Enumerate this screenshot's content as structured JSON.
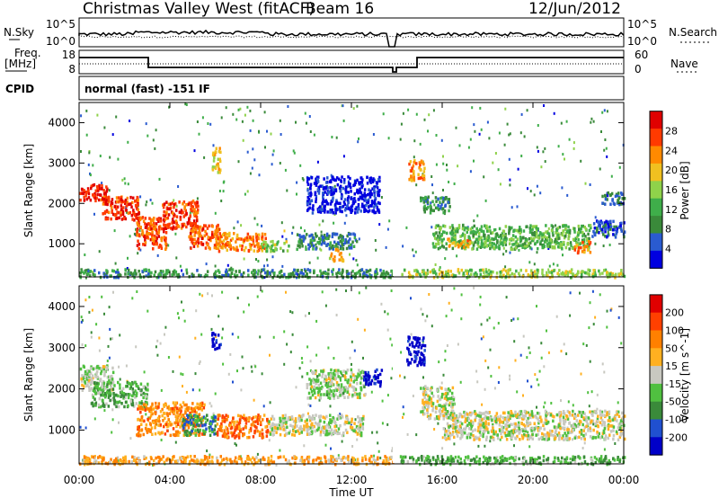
{
  "header": {
    "station": "Christmas Valley West (fitACF)",
    "beam": "Beam 16",
    "date": "12/Jun/2012"
  },
  "noise_panel": {
    "left_label": "N.Sky",
    "left_ticks": [
      "10^5",
      "10^0"
    ],
    "right_label": "N.Search",
    "right_ticks": [
      "10^5",
      "10^0"
    ]
  },
  "freq_panel": {
    "left_label_line1": "Freq.",
    "left_label_line2": "[MHz]",
    "left_ticks": [
      "18",
      "8"
    ],
    "right_label": "Nave",
    "right_ticks": [
      "60",
      "0"
    ]
  },
  "cpid_panel": {
    "label": "CPID",
    "text": "normal (fast) -151 IF"
  },
  "chart_data": [
    {
      "type": "heatmap",
      "title": "",
      "quantity": "Power",
      "ylabel": "Slant Range [km]",
      "colorbar_label": "Power [dB]",
      "colorbar_ticks": [
        "28",
        "24",
        "20",
        "16",
        "12",
        "8",
        "4"
      ],
      "yticks": [
        "4000",
        "3000",
        "2000",
        "1000"
      ],
      "ylim": [
        180,
        4500
      ],
      "xlim_hours": [
        0,
        24
      ],
      "colors": [
        "#0000e0",
        "#2a5bd0",
        "#3a8a3a",
        "#3fae4a",
        "#8fd24a",
        "#f0c020",
        "#ff8a00",
        "#ff3a00",
        "#e00000"
      ],
      "bands": [
        {
          "t0": 0.0,
          "t1": 1.2,
          "r0": 2100,
          "r1": 2500,
          "level": 0.9
        },
        {
          "t0": 1.0,
          "t1": 2.6,
          "r0": 1600,
          "r1": 2200,
          "level": 0.85
        },
        {
          "t0": 2.5,
          "t1": 3.8,
          "r0": 900,
          "r1": 1700,
          "level": 0.8
        },
        {
          "t0": 3.6,
          "t1": 5.2,
          "r0": 1400,
          "r1": 2100,
          "level": 0.85
        },
        {
          "t0": 4.8,
          "t1": 6.2,
          "r0": 900,
          "r1": 1500,
          "level": 0.8
        },
        {
          "t0": 6.0,
          "t1": 8.2,
          "r0": 850,
          "r1": 1300,
          "level": 0.75
        },
        {
          "t0": 5.8,
          "t1": 6.2,
          "r0": 2800,
          "r1": 3400,
          "level": 0.6
        },
        {
          "t0": 8.0,
          "t1": 9.2,
          "r0": 850,
          "r1": 1100,
          "level": 0.45
        },
        {
          "t0": 9.5,
          "t1": 12.2,
          "r0": 900,
          "r1": 1300,
          "level": 0.25
        },
        {
          "t0": 11.0,
          "t1": 11.6,
          "r0": 600,
          "r1": 900,
          "level": 0.65
        },
        {
          "t0": 10.0,
          "t1": 13.2,
          "r0": 1800,
          "r1": 2700,
          "level": 0.05
        },
        {
          "t0": 14.5,
          "t1": 15.2,
          "r0": 2600,
          "r1": 3100,
          "level": 0.7
        },
        {
          "t0": 15.0,
          "t1": 16.3,
          "r0": 1800,
          "r1": 2200,
          "level": 0.3
        },
        {
          "t0": 15.5,
          "t1": 22.5,
          "r0": 900,
          "r1": 1500,
          "level": 0.4
        },
        {
          "t0": 16.2,
          "t1": 17.2,
          "r0": 950,
          "r1": 1150,
          "level": 0.7
        },
        {
          "t0": 21.8,
          "t1": 22.5,
          "r0": 800,
          "r1": 1100,
          "level": 0.75
        },
        {
          "t0": 22.5,
          "t1": 24.0,
          "r0": 1200,
          "r1": 1600,
          "level": 0.15
        },
        {
          "t0": 23.0,
          "t1": 24.0,
          "r0": 2000,
          "r1": 2300,
          "level": 0.2
        },
        {
          "t0": 0.0,
          "t1": 13.8,
          "r0": 200,
          "r1": 400,
          "level": 0.3
        },
        {
          "t0": 14.1,
          "t1": 24.0,
          "r0": 200,
          "r1": 400,
          "level": 0.5
        }
      ]
    },
    {
      "type": "heatmap",
      "title": "",
      "quantity": "Velocity",
      "ylabel": "Slant Range [km]",
      "colorbar_label": "Velocity [m s^-1]",
      "colorbar_ticks": [
        "200",
        "100",
        "50",
        "15",
        "-15",
        "-50",
        "-100",
        "-200"
      ],
      "yticks": [
        "4000",
        "3000",
        "2000",
        "1000"
      ],
      "ylim": [
        180,
        4500
      ],
      "xlim_hours": [
        0,
        24
      ],
      "colors": [
        "#0000c8",
        "#2050d0",
        "#3a8a3a",
        "#50c040",
        "#c8c8c0",
        "#ffb020",
        "#ff8000",
        "#ff4000",
        "#e00000"
      ],
      "bands": [
        {
          "t0": 0.0,
          "t1": 1.5,
          "r0": 2000,
          "r1": 2600,
          "level": 0.45
        },
        {
          "t0": 0.5,
          "t1": 3.0,
          "r0": 1600,
          "r1": 2200,
          "level": 0.35
        },
        {
          "t0": 2.5,
          "t1": 5.5,
          "r0": 900,
          "r1": 1700,
          "level": 0.7
        },
        {
          "t0": 4.5,
          "t1": 6.0,
          "r0": 900,
          "r1": 1400,
          "level": 0.3
        },
        {
          "t0": 6.0,
          "t1": 8.3,
          "r0": 850,
          "r1": 1400,
          "level": 0.75
        },
        {
          "t0": 5.8,
          "t1": 6.2,
          "r0": 3000,
          "r1": 3400,
          "level": 0.05
        },
        {
          "t0": 8.3,
          "t1": 12.5,
          "r0": 900,
          "r1": 1400,
          "level": 0.5
        },
        {
          "t0": 10.0,
          "t1": 12.6,
          "r0": 1800,
          "r1": 2500,
          "level": 0.45
        },
        {
          "t0": 12.5,
          "t1": 13.3,
          "r0": 2100,
          "r1": 2500,
          "level": 0.05
        },
        {
          "t0": 14.4,
          "t1": 15.2,
          "r0": 2600,
          "r1": 3300,
          "level": 0.02
        },
        {
          "t0": 15.0,
          "t1": 16.5,
          "r0": 1300,
          "r1": 2100,
          "level": 0.5
        },
        {
          "t0": 16.0,
          "t1": 24.0,
          "r0": 800,
          "r1": 1500,
          "level": 0.5
        },
        {
          "t0": 0.0,
          "t1": 13.8,
          "r0": 200,
          "r1": 400,
          "level": 0.65
        },
        {
          "t0": 14.1,
          "t1": 24.0,
          "r0": 200,
          "r1": 400,
          "level": 0.35
        }
      ]
    }
  ],
  "time_axis": {
    "ticks": [
      "00:00",
      "04:00",
      "08:00",
      "12:00",
      "16:00",
      "20:00",
      "00:00"
    ],
    "label": "Time UT"
  },
  "colors": {
    "frame": "#000000",
    "background": "#ffffff"
  }
}
